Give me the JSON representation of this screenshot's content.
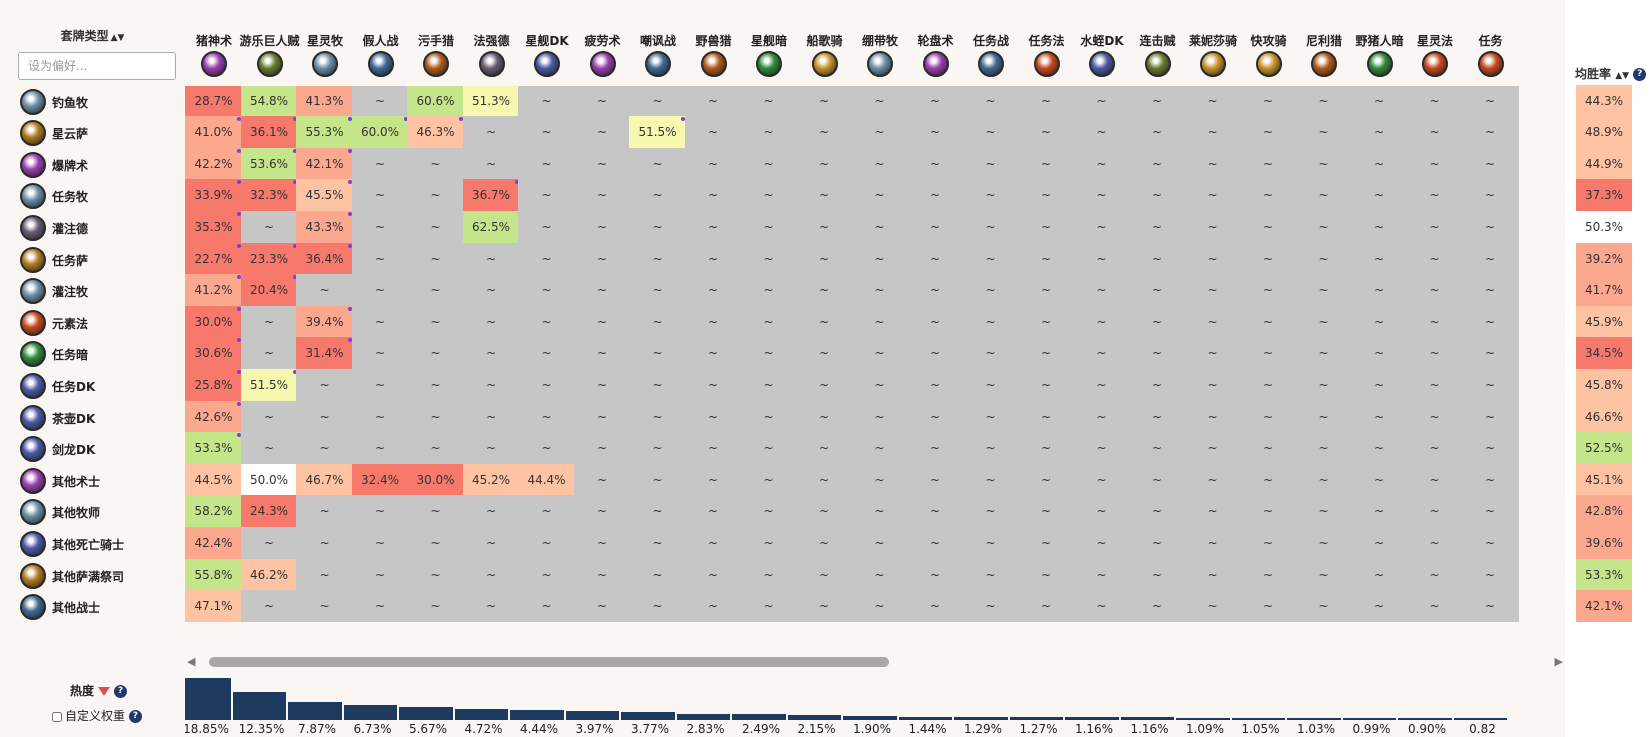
{
  "corner": {
    "title": "套牌类型",
    "filter_placeholder": "设为偏好..."
  },
  "columns": [
    {
      "label": "猪神术",
      "icon": "warlock-icon",
      "color": "#9a3fb0"
    },
    {
      "label": "游乐巨人贼",
      "icon": "rogue-icon",
      "color": "#6a7a2e"
    },
    {
      "label": "星灵牧",
      "icon": "priest-icon",
      "color": "#6b8fa6"
    },
    {
      "label": "假人战",
      "icon": "warrior-icon",
      "color": "#3f6a94"
    },
    {
      "label": "污手猎",
      "icon": "hunter-icon",
      "color": "#b25a1c"
    },
    {
      "label": "法强德",
      "icon": "druid-icon",
      "color": "#6a5a72"
    },
    {
      "label": "星舰DK",
      "icon": "deathknight-icon",
      "color": "#4a5aa8"
    },
    {
      "label": "疲劳术",
      "icon": "warlock-icon",
      "color": "#9a3fb0"
    },
    {
      "label": "嘲讽战",
      "icon": "warrior-icon",
      "color": "#3f6a94"
    },
    {
      "label": "野兽猎",
      "icon": "hunter-icon",
      "color": "#b25a1c"
    },
    {
      "label": "星舰暗",
      "icon": "shadow-icon",
      "color": "#2f8a3a"
    },
    {
      "label": "船歌骑",
      "icon": "paladin-icon",
      "color": "#c8922a"
    },
    {
      "label": "绷带牧",
      "icon": "priest-icon",
      "color": "#6b8fa6"
    },
    {
      "label": "轮盘术",
      "icon": "warlock-icon",
      "color": "#9a3fb0"
    },
    {
      "label": "任务战",
      "icon": "warrior-icon",
      "color": "#3f6a94"
    },
    {
      "label": "任务法",
      "icon": "mage-icon",
      "color": "#c8481e"
    },
    {
      "label": "水蛭DK",
      "icon": "deathknight-icon",
      "color": "#4a5aa8"
    },
    {
      "label": "连击贼",
      "icon": "rogue-icon",
      "color": "#6a7a2e"
    },
    {
      "label": "莱妮莎骑",
      "icon": "paladin-icon",
      "color": "#c8922a"
    },
    {
      "label": "快攻骑",
      "icon": "paladin-icon",
      "color": "#c8922a"
    },
    {
      "label": "尼利猎",
      "icon": "hunter-icon",
      "color": "#b25a1c"
    },
    {
      "label": "野猪人暗",
      "icon": "shadow-icon",
      "color": "#2f8a3a"
    },
    {
      "label": "星灵法",
      "icon": "mage-icon",
      "color": "#c8481e"
    },
    {
      "label": "任务",
      "icon": "mage-icon",
      "color": "#c8481e"
    }
  ],
  "rows": [
    {
      "label": "钓鱼牧",
      "icon": "priest-icon",
      "color": "#6b8fa6",
      "winrate": "44.3%",
      "cells": [
        {
          "v": "28.7%"
        },
        {
          "v": "54.8%"
        },
        {
          "v": "41.3%"
        },
        {
          "v": "~"
        },
        {
          "v": "60.6%"
        },
        {
          "v": "51.3%"
        }
      ]
    },
    {
      "label": "星云萨",
      "icon": "shaman-icon",
      "color": "#b07a20",
      "winrate": "48.9%",
      "cells": [
        {
          "v": "41.0%",
          "d": 1
        },
        {
          "v": "36.1%",
          "d": 1
        },
        {
          "v": "55.3%",
          "d": 1
        },
        {
          "v": "60.0%",
          "d": 1
        },
        {
          "v": "46.3%",
          "d": 1
        },
        {
          "v": "~"
        },
        {
          "v": "~"
        },
        {
          "v": "~"
        },
        {
          "v": "51.5%",
          "d": 1
        }
      ]
    },
    {
      "label": "爆牌术",
      "icon": "warlock-icon",
      "color": "#9a3fb0",
      "winrate": "44.9%",
      "cells": [
        {
          "v": "42.2%",
          "d": 1
        },
        {
          "v": "53.6%",
          "d": 1
        },
        {
          "v": "42.1%",
          "d": 1
        }
      ]
    },
    {
      "label": "任务牧",
      "icon": "priest-icon",
      "color": "#6b8fa6",
      "winrate": "37.3%",
      "cells": [
        {
          "v": "33.9%",
          "d": 1
        },
        {
          "v": "32.3%",
          "d": 1
        },
        {
          "v": "45.5%",
          "d": 1
        },
        {
          "v": "~"
        },
        {
          "v": "~"
        },
        {
          "v": "36.7%",
          "d": 1
        }
      ]
    },
    {
      "label": "灌注德",
      "icon": "druid-icon",
      "color": "#6a5a72",
      "winrate": "50.3%",
      "cells": [
        {
          "v": "35.3%",
          "d": 1
        },
        {
          "v": "~"
        },
        {
          "v": "43.3%",
          "d": 1
        },
        {
          "v": "~"
        },
        {
          "v": "~"
        },
        {
          "v": "62.5%"
        }
      ]
    },
    {
      "label": "任务萨",
      "icon": "shaman-icon",
      "color": "#b07a20",
      "winrate": "39.2%",
      "cells": [
        {
          "v": "22.7%",
          "d": 1
        },
        {
          "v": "23.3%",
          "d": 1
        },
        {
          "v": "36.4%",
          "d": 1
        }
      ]
    },
    {
      "label": "灌注牧",
      "icon": "priest-icon",
      "color": "#6b8fa6",
      "winrate": "41.7%",
      "cells": [
        {
          "v": "41.2%",
          "d": 1
        },
        {
          "v": "20.4%",
          "d": 1
        }
      ]
    },
    {
      "label": "元素法",
      "icon": "mage-icon",
      "color": "#c8481e",
      "winrate": "45.9%",
      "cells": [
        {
          "v": "30.0%",
          "d": 1
        },
        {
          "v": "~"
        },
        {
          "v": "39.4%",
          "d": 1
        }
      ]
    },
    {
      "label": "任务暗",
      "icon": "shadow-icon",
      "color": "#2f8a3a",
      "winrate": "34.5%",
      "cells": [
        {
          "v": "30.6%",
          "d": 1
        },
        {
          "v": "~"
        },
        {
          "v": "31.4%",
          "d": 1
        }
      ]
    },
    {
      "label": "任务DK",
      "icon": "deathknight-icon",
      "color": "#4a5aa8",
      "winrate": "45.8%",
      "cells": [
        {
          "v": "25.8%",
          "d": 1
        },
        {
          "v": "51.5%",
          "d": 1
        }
      ]
    },
    {
      "label": "茶壶DK",
      "icon": "deathknight-icon",
      "color": "#4a5aa8",
      "winrate": "46.6%",
      "cells": [
        {
          "v": "42.6%",
          "d": 1
        }
      ]
    },
    {
      "label": "剑龙DK",
      "icon": "deathknight-icon",
      "color": "#4a5aa8",
      "winrate": "52.5%",
      "cells": [
        {
          "v": "53.3%",
          "d": 1
        }
      ]
    },
    {
      "label": "其他术士",
      "icon": "warlock-icon",
      "color": "#9a3fb0",
      "winrate": "45.1%",
      "cells": [
        {
          "v": "44.5%"
        },
        {
          "v": "50.0%"
        },
        {
          "v": "46.7%"
        },
        {
          "v": "32.4%"
        },
        {
          "v": "30.0%"
        },
        {
          "v": "45.2%"
        },
        {
          "v": "44.4%"
        }
      ]
    },
    {
      "label": "其他牧师",
      "icon": "priest-icon",
      "color": "#6b8fa6",
      "winrate": "42.8%",
      "cells": [
        {
          "v": "58.2%"
        },
        {
          "v": "24.3%"
        }
      ]
    },
    {
      "label": "其他死亡骑士",
      "icon": "deathknight-icon",
      "color": "#4a5aa8",
      "winrate": "39.6%",
      "cells": [
        {
          "v": "42.4%"
        }
      ]
    },
    {
      "label": "其他萨满祭司",
      "icon": "shaman-icon",
      "color": "#b07a20",
      "winrate": "53.3%",
      "cells": [
        {
          "v": "55.8%"
        },
        {
          "v": "46.2%"
        }
      ]
    },
    {
      "label": "其他战士",
      "icon": "warrior-icon",
      "color": "#3f6a94",
      "winrate": "42.1%",
      "cells": [
        {
          "v": "47.1%"
        }
      ]
    }
  ],
  "winrate_header": {
    "title": "均胜率",
    "sort": "▲▼",
    "help": "?"
  },
  "popularity": {
    "label": "热度",
    "help": "?",
    "custom_weight_label": "自定义权重",
    "values": [
      "18.85%",
      "12.35%",
      "7.87%",
      "6.73%",
      "5.67%",
      "4.72%",
      "4.44%",
      "3.97%",
      "3.77%",
      "2.83%",
      "2.49%",
      "2.15%",
      "1.90%",
      "1.44%",
      "1.29%",
      "1.27%",
      "1.16%",
      "1.16%",
      "1.09%",
      "1.05%",
      "1.03%",
      "0.99%",
      "0.90%",
      "0.82"
    ],
    "numbers": [
      18.85,
      12.35,
      7.87,
      6.73,
      5.67,
      4.72,
      4.44,
      3.97,
      3.77,
      2.83,
      2.49,
      2.15,
      1.9,
      1.44,
      1.29,
      1.27,
      1.16,
      1.16,
      1.09,
      1.05,
      1.03,
      0.99,
      0.9,
      0.82
    ]
  },
  "colors": {
    "empty_cell": "#c6c6c6",
    "bar": "#1f3a5f",
    "dot": "#7b3fe4"
  }
}
